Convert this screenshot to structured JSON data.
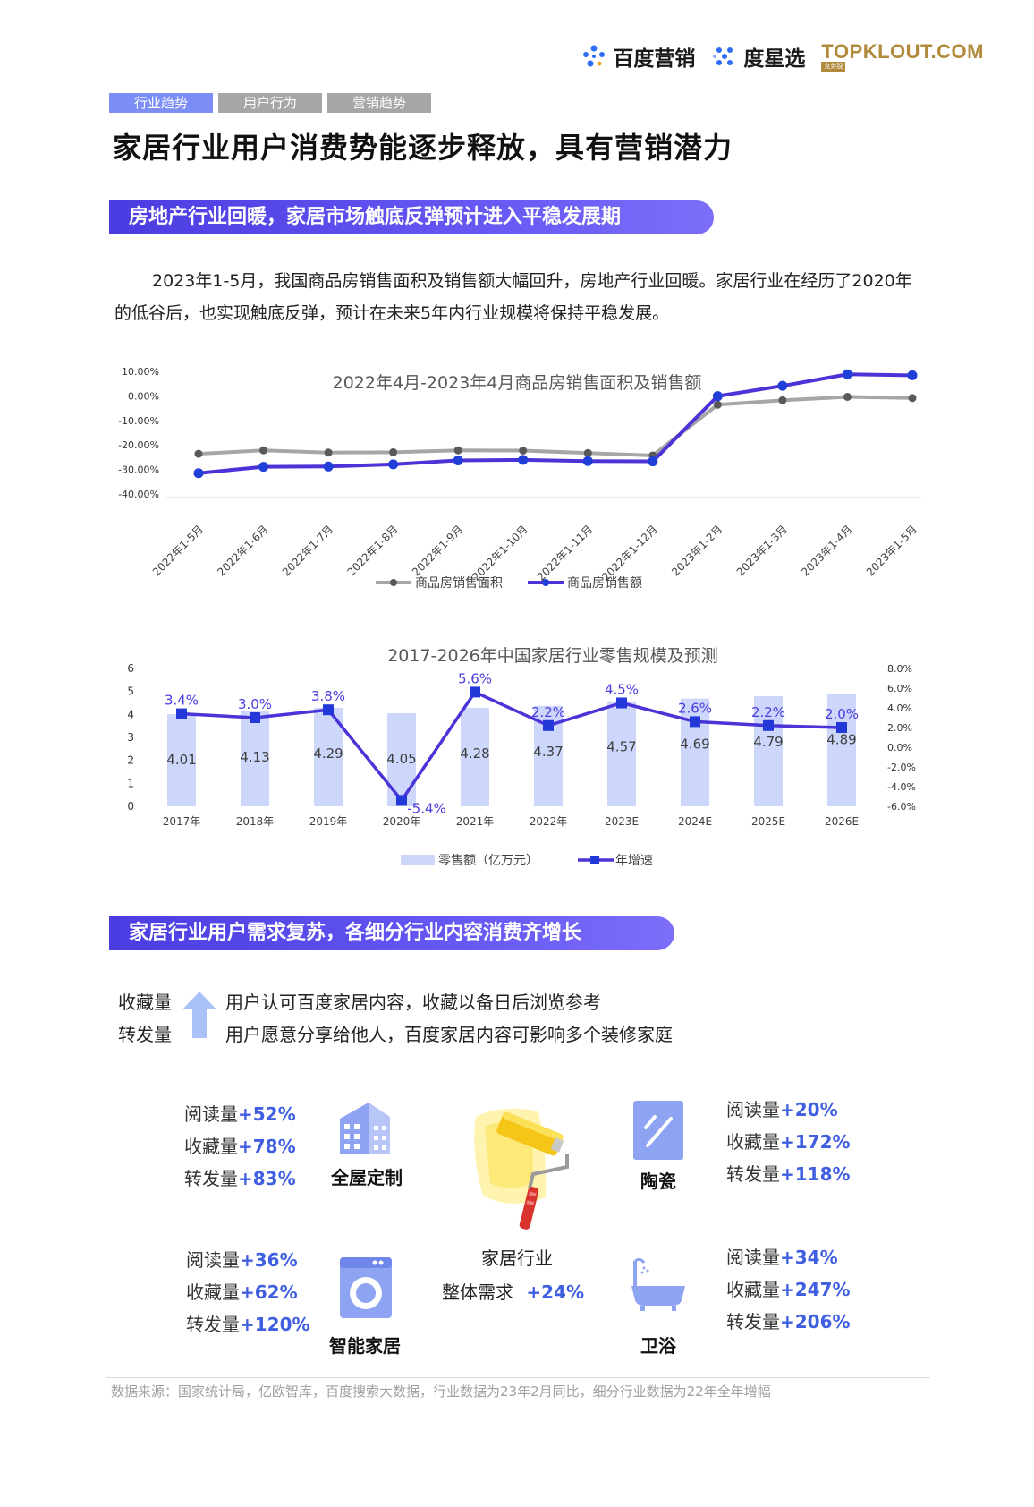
{
  "header": {
    "logos": [
      "百度营销",
      "度星选",
      "TOPKLOUT.COM"
    ],
    "topklout_sub": "克劳锐"
  },
  "tabs": [
    {
      "label": "行业趋势",
      "active": true
    },
    {
      "label": "用户行为",
      "active": false
    },
    {
      "label": "营销趋势",
      "active": false
    }
  ],
  "page_title": "家居行业用户消费势能逐步释放，具有营销潜力",
  "section1": {
    "banner": "房地产行业回暖，家居市场触底反弹预计进入平稳发展期",
    "intro": "2023年1-5月，我国商品房销售面积及销售额大幅回升，房地产行业回暖。家居行业在经历了2020年的低谷后，也实现触底反弹，预计在未来5年内行业规模将保持平稳发展。"
  },
  "chart_data": [
    {
      "type": "line",
      "title": "2022年4月-2023年4月商品房销售面积及销售额",
      "categories": [
        "2022年1-5月",
        "2022年1-6月",
        "2022年1-7月",
        "2022年1-8月",
        "2022年1-9月",
        "2022年1-10月",
        "2022年1-11月",
        "2022年1-12月",
        "2023年1-2月",
        "2023年1-3月",
        "2023年1-4月",
        "2023年1-5月"
      ],
      "y_ticks": [
        "10.00%",
        "0.00%",
        "-10.00%",
        "-20.00%",
        "-30.00%",
        "-40.00%"
      ],
      "ylim": [
        -40,
        10
      ],
      "series": [
        {
          "name": "商品房销售面积",
          "color": "#a6a6a6",
          "values": [
            -23.6,
            -22.2,
            -23.1,
            -23.0,
            -22.2,
            -22.3,
            -23.3,
            -24.3,
            -3.6,
            -1.8,
            -0.4,
            -0.9
          ]
        },
        {
          "name": "商品房销售额",
          "color": "#4a34d8",
          "values": [
            -31.5,
            -28.9,
            -28.8,
            -27.9,
            -26.3,
            -26.1,
            -26.6,
            -26.7,
            -0.1,
            4.1,
            8.8,
            8.4
          ]
        }
      ],
      "legend": "bottom"
    },
    {
      "type": "bar",
      "title": "2017-2026年中国家居行业零售规模及预测",
      "categories": [
        "2017年",
        "2018年",
        "2019年",
        "2020年",
        "2021年",
        "2022年",
        "2023E",
        "2024E",
        "2025E",
        "2026E"
      ],
      "left_ticks": [
        "0",
        "1",
        "2",
        "3",
        "4",
        "5",
        "6"
      ],
      "right_ticks": [
        "8.0%",
        "6.0%",
        "4.0%",
        "2.0%",
        "0.0%",
        "-2.0%",
        "-4.0%",
        "-6.0%"
      ],
      "ylim_left": [
        0,
        6
      ],
      "ylim_right": [
        -6,
        8
      ],
      "series": [
        {
          "name": "零售额（亿万元）",
          "kind": "bar",
          "color": "#cdd6fb",
          "values": [
            4.01,
            4.13,
            4.29,
            4.05,
            4.28,
            4.37,
            4.57,
            4.69,
            4.79,
            4.89
          ],
          "labels": [
            "4.01",
            "4.13",
            "4.29",
            "4.05",
            "4.28",
            "4.37",
            "4.57",
            "4.69",
            "4.79",
            "4.89"
          ]
        },
        {
          "name": "年增速",
          "kind": "line",
          "color": "#4a34d8",
          "values": [
            3.4,
            3.0,
            3.8,
            -5.4,
            5.6,
            2.2,
            4.5,
            2.6,
            2.2,
            2.0
          ],
          "labels": [
            "3.4%",
            "3.0%",
            "3.8%",
            "-5.4%",
            "5.6%",
            "2.2%",
            "4.5%",
            "2.6%",
            "2.2%",
            "2.0%"
          ]
        }
      ],
      "legend": "bottom"
    }
  ],
  "section2": {
    "banner": "家居行业用户需求复苏，各细分行业内容消费齐增长",
    "kw1": "收藏量",
    "kw2": "转发量",
    "kw1_desc": "用户认可百度家居内容，收藏以备日后浏览参考",
    "kw2_desc": "用户愿意分享给他人，百度家居内容可影响多个装修家庭",
    "center_line1": "家居行业",
    "center_line2": "整体需求",
    "center_value": "+24%",
    "categories": [
      {
        "name": "全屋定制",
        "icon": "building-icon",
        "stats": [
          {
            "k": "阅读量",
            "v": "+52%"
          },
          {
            "k": "收藏量",
            "v": "+78%"
          },
          {
            "k": "转发量",
            "v": "+83%"
          }
        ]
      },
      {
        "name": "陶瓷",
        "icon": "tile-icon",
        "stats": [
          {
            "k": "阅读量",
            "v": "+20%"
          },
          {
            "k": "收藏量",
            "v": "+172%"
          },
          {
            "k": "转发量",
            "v": "+118%"
          }
        ]
      },
      {
        "name": "智能家居",
        "icon": "washing-machine-icon",
        "stats": [
          {
            "k": "阅读量",
            "v": "+36%"
          },
          {
            "k": "收藏量",
            "v": "+62%"
          },
          {
            "k": "转发量",
            "v": "+120%"
          }
        ]
      },
      {
        "name": "卫浴",
        "icon": "bathtub-icon",
        "stats": [
          {
            "k": "阅读量",
            "v": "+34%"
          },
          {
            "k": "收藏量",
            "v": "+247%"
          },
          {
            "k": "转发量",
            "v": "+206%"
          }
        ]
      }
    ]
  },
  "source": "数据来源：国家统计局，亿欧智库，百度搜索大数据，行业数据为23年2月同比，细分行业数据为22年全年增幅",
  "colors": {
    "accent": "#4a34d8",
    "tab_active": "#7c8ef5",
    "tab_inactive": "#a6a6a6",
    "bar": "#cdd6fb",
    "stat": "#3f5fe0"
  }
}
